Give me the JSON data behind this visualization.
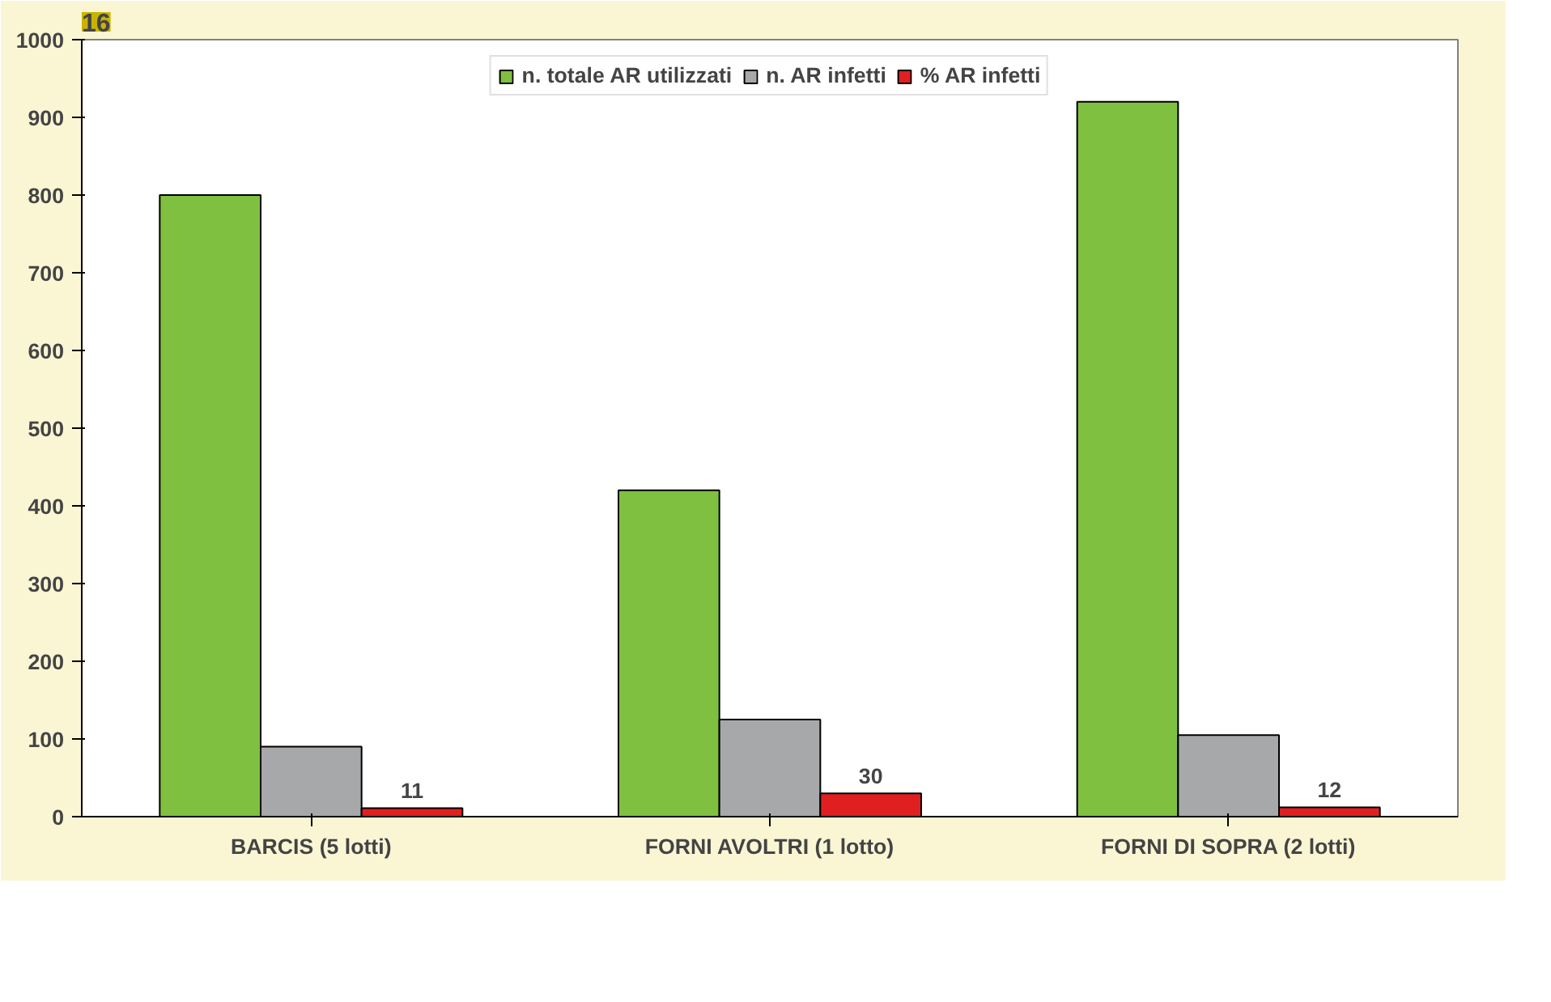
{
  "chart_data": {
    "type": "bar",
    "categories": [
      "BARCIS (5 lotti)",
      "FORNI AVOLTRI (1 lotto)",
      "FORNI DI SOPRA (2 lotti)"
    ],
    "series": [
      {
        "name": "n. totale AR utilizzati",
        "color": "#80c040",
        "values": [
          800,
          420,
          920
        ]
      },
      {
        "name": "n. AR infetti",
        "color": "#a6a8aa",
        "values": [
          90,
          125,
          105
        ]
      },
      {
        "name": "% AR infetti",
        "color": "#e02020",
        "values": [
          11,
          30,
          12
        ],
        "value_labels": [
          "11",
          "30",
          "12"
        ]
      }
    ],
    "ylim": [
      0,
      1000
    ],
    "yticks": [
      0,
      100,
      200,
      300,
      400,
      500,
      600,
      700,
      800,
      900,
      1000
    ],
    "grid": false,
    "legend": "top",
    "annotations": [
      "16"
    ]
  }
}
